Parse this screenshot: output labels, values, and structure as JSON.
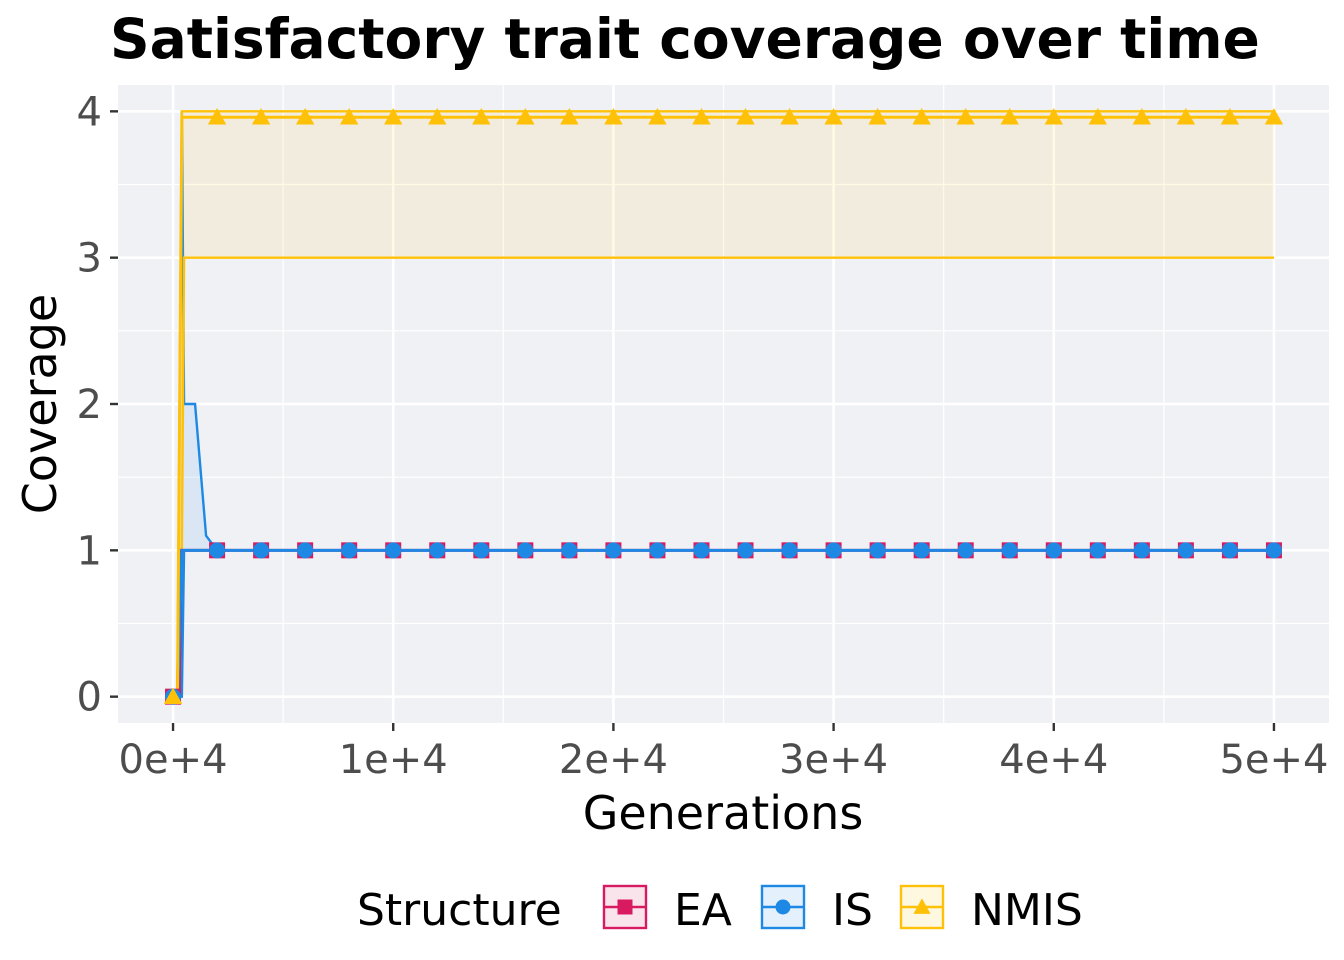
{
  "chart_data": {
    "type": "line",
    "title": "Satisfactory trait coverage over time",
    "xlabel": "Generations",
    "ylabel": "Coverage",
    "xlim": [
      -2500,
      52500
    ],
    "ylim": [
      -0.18,
      4.18
    ],
    "x_ticks": [
      0,
      10000,
      20000,
      30000,
      40000,
      50000
    ],
    "x_tick_labels": [
      "0e+4",
      "1e+4",
      "2e+4",
      "3e+4",
      "4e+4",
      "5e+4"
    ],
    "y_ticks": [
      0,
      1,
      2,
      3,
      4
    ],
    "y_tick_labels": [
      "0",
      "1",
      "2",
      "3",
      "4"
    ],
    "grid": true,
    "legend": {
      "position": "bottom",
      "title": "Structure",
      "entries": [
        "EA",
        "IS",
        "NMIS"
      ]
    },
    "marker_x": [
      0,
      2000,
      4000,
      6000,
      8000,
      10000,
      12000,
      14000,
      16000,
      18000,
      20000,
      22000,
      24000,
      26000,
      28000,
      30000,
      32000,
      34000,
      36000,
      38000,
      40000,
      42000,
      44000,
      46000,
      48000,
      50000
    ],
    "series": [
      {
        "name": "EA",
        "color": "#d81b60",
        "marker": "square",
        "x": [
          0,
          200,
          300,
          400,
          600,
          2000,
          50000
        ],
        "median": [
          0,
          0,
          1,
          1,
          1,
          1,
          1
        ],
        "lower": [
          0,
          0,
          0,
          1,
          1,
          1,
          1
        ],
        "upper": [
          0,
          0,
          1,
          1,
          1,
          1,
          1
        ]
      },
      {
        "name": "IS",
        "color": "#1e88e5",
        "marker": "circle",
        "x": [
          0,
          200,
          400,
          500,
          1000,
          1500,
          2000,
          50000
        ],
        "median": [
          0,
          0,
          1,
          1,
          1,
          1,
          1,
          1
        ],
        "lower": [
          0,
          0,
          0,
          1,
          1,
          1,
          1,
          1
        ],
        "upper": [
          0,
          0,
          4,
          2,
          2,
          1.1,
          1,
          1
        ]
      },
      {
        "name": "NMIS",
        "color": "#ffc107",
        "marker": "triangle",
        "x": [
          0,
          200,
          400,
          500,
          50000
        ],
        "median": [
          0,
          0,
          3.96,
          3.96,
          3.96
        ],
        "lower": [
          0,
          0,
          1,
          3,
          3
        ],
        "upper": [
          0,
          0,
          4,
          4,
          4
        ]
      }
    ]
  }
}
